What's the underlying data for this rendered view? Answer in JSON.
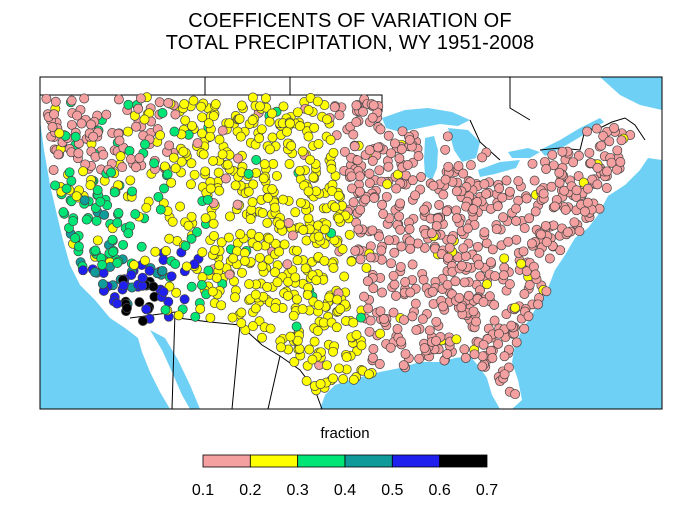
{
  "title": {
    "line1": "COEFFICENTS OF VARIATION OF",
    "line2": "TOTAL PRECIPITATION, WY 1951-2008"
  },
  "legend": {
    "title": "fraction",
    "ticks": [
      "0.1",
      "0.2",
      "0.3",
      "0.4",
      "0.5",
      "0.6",
      "0.7"
    ],
    "classes": [
      {
        "range": "0.1-0.2",
        "color": "#f4a0a0"
      },
      {
        "range": "0.2-0.3",
        "color": "#ffff00"
      },
      {
        "range": "0.3-0.4",
        "color": "#00e676"
      },
      {
        "range": "0.4-0.5",
        "color": "#109a9a"
      },
      {
        "range": "0.5-0.6",
        "color": "#2020ee"
      },
      {
        "range": "0.6-0.7",
        "color": "#000000"
      }
    ]
  },
  "map": {
    "region": "Conterminous United States",
    "ocean_color": "#6fd0f5",
    "land_color": "#ffffff",
    "border_color": "#000000"
  }
}
